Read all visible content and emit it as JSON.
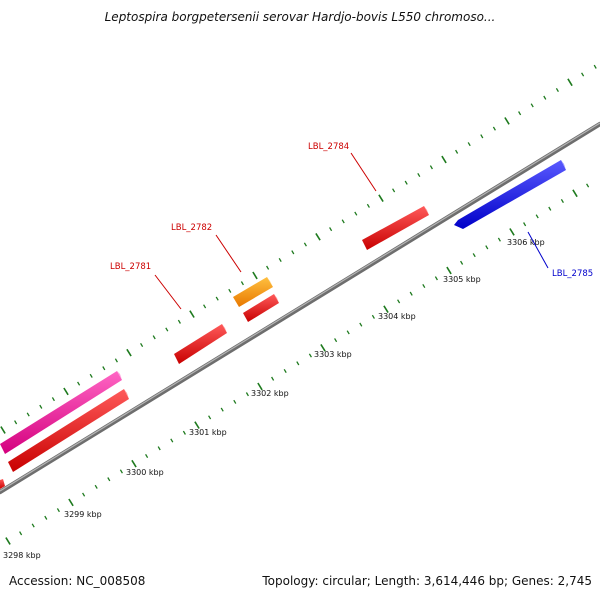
{
  "title": "Leptospira borgpetersenii serovar Hardjo-bovis L550 chromoso...",
  "accession": "Accession: NC_008508",
  "summary": "Topology: circular; Length: 3,614,446 bp; Genes: 2,745",
  "colors": {
    "backbone": "#7a7a7a",
    "tick": "#1e7a1e",
    "red_gene": "#ee1111",
    "orange_gene": "#ff9910",
    "magenta_gene": "#ee1199",
    "blue_gene": "#1111ee",
    "label_red": "#cc0000",
    "label_blue": "#0000cc"
  },
  "ticks": [
    {
      "label": "3298 kbp"
    },
    {
      "label": "3299 kbp"
    },
    {
      "label": "3300 kbp"
    },
    {
      "label": "3301 kbp"
    },
    {
      "label": "3302 kbp"
    },
    {
      "label": "3303 kbp"
    },
    {
      "label": "3304 kbp"
    },
    {
      "label": "3305 kbp"
    },
    {
      "label": "3306 kbp"
    }
  ],
  "gene_labels": [
    {
      "label": "LBL_2781",
      "color": "red"
    },
    {
      "label": "LBL_2782",
      "color": "red"
    },
    {
      "label": "LBL_2784",
      "color": "red"
    },
    {
      "label": "LBL_2785",
      "color": "blue"
    }
  ]
}
